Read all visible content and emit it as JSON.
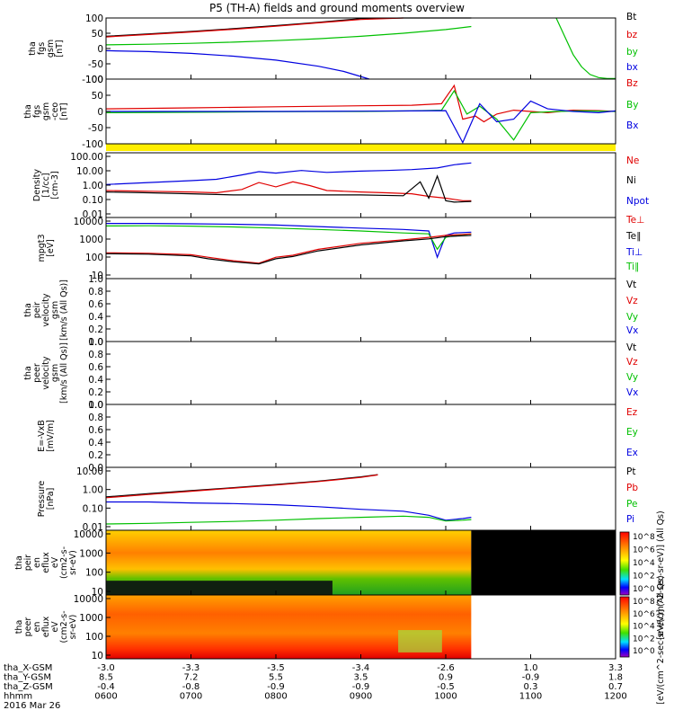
{
  "title": "P5 (TH-A) fields and ground moments overview",
  "footer": {
    "row_labels": [
      "tha_X-GSM",
      "tha_Y-GSM",
      "tha_Z-GSM",
      "hhmm",
      "2016 Mar 26"
    ],
    "columns": [
      [
        "-3.0",
        "8.5",
        "-0.4",
        "0600"
      ],
      [
        "-3.3",
        "7.2",
        "-0.8",
        "0700"
      ],
      [
        "-3.5",
        "5.5",
        "-0.9",
        "0800"
      ],
      [
        "-3.4",
        "3.5",
        "-0.9",
        "0900"
      ],
      [
        "-2.6",
        "0.9",
        "-0.5",
        "1000"
      ],
      [
        "1.0",
        "-0.9",
        "0.3",
        "1100"
      ],
      [
        "3.3",
        "1.8",
        "0.7",
        "1200"
      ]
    ]
  },
  "colorbar": {
    "top_label": "[eV/(cm^2-sec-sr-eV)] (All Qs)",
    "bottom_label": "[eV/(cm^2-sec-sr-eV)] (All Qs)",
    "ticks": [
      "10^8",
      "10^6",
      "10^4",
      "10^2",
      "10^0"
    ]
  },
  "colors": {
    "black": "#000000",
    "red": "#e00000",
    "green": "#00c000",
    "blue": "#0000e0",
    "yellow": "#ffee00"
  },
  "chart_data": [
    {
      "id": "fgs-gsm-top",
      "type": "line",
      "ylabel": [
        "tha",
        "fgs",
        "gsm",
        "[nT]"
      ],
      "yticks": [
        "100",
        "50",
        "0",
        "-50",
        "-100"
      ],
      "ylim": [
        -100,
        100
      ],
      "legend": [
        {
          "text": "Bt",
          "color": "black"
        },
        {
          "text": "bz",
          "color": "red"
        },
        {
          "text": "by",
          "color": "green"
        },
        {
          "text": "bx",
          "color": "blue"
        }
      ],
      "series": [
        {
          "name": "Bt",
          "color": "black",
          "x": [
            6.0,
            6.5,
            7.0,
            7.5,
            8.0,
            8.5,
            9.0,
            9.5,
            10.0,
            10.3
          ],
          "y": [
            40,
            48,
            56,
            65,
            75,
            86,
            98,
            110,
            125,
            140
          ]
        },
        {
          "name": "bz",
          "color": "red",
          "x": [
            6.0,
            6.5,
            7.0,
            7.5,
            8.0,
            8.5,
            9.0,
            9.5
          ],
          "y": [
            38,
            46,
            54,
            63,
            73,
            84,
            95,
            108
          ]
        },
        {
          "name": "by",
          "color": "green",
          "x": [
            6.0,
            6.5,
            7.0,
            7.5,
            8.0,
            8.5,
            9.0,
            9.5,
            10.0,
            10.3
          ],
          "y": [
            12,
            14,
            17,
            21,
            26,
            32,
            40,
            50,
            62,
            72
          ]
        },
        {
          "name": "bx",
          "color": "blue",
          "x": [
            6.0,
            6.5,
            7.0,
            7.5,
            8.0,
            8.5,
            8.8,
            9.1
          ],
          "y": [
            -7,
            -10,
            -16,
            -25,
            -38,
            -58,
            -75,
            -100
          ]
        },
        {
          "name": "by-late",
          "color": "green",
          "x": [
            11.3,
            11.4,
            11.5,
            11.6,
            11.7,
            11.8,
            11.9,
            12.0
          ],
          "y": [
            100,
            40,
            -20,
            -60,
            -85,
            -95,
            -98,
            -98
          ]
        }
      ]
    },
    {
      "id": "fgs-gse-ceo",
      "type": "line",
      "ylabel": [
        "tha",
        "fgs",
        "gsm",
        "-ceo",
        "[nT]"
      ],
      "yticks": [
        "100",
        "50",
        "0",
        "-50",
        "-100"
      ],
      "ylim": [
        -125,
        125
      ],
      "legend": [
        {
          "text": "Bz",
          "color": "red"
        },
        {
          "text": "By",
          "color": "green"
        },
        {
          "text": "Bx",
          "color": "blue"
        }
      ],
      "series": [
        {
          "name": "Bz",
          "color": "red",
          "x": [
            6.0,
            7.0,
            8.0,
            9.0,
            9.6,
            9.95,
            10.1,
            10.2,
            10.35,
            10.45,
            10.6,
            10.8,
            11.0,
            11.2,
            11.5,
            11.8,
            12.0
          ],
          "y": [
            10,
            14,
            18,
            22,
            24,
            30,
            100,
            -30,
            -18,
            -40,
            -10,
            5,
            0,
            -5,
            5,
            3,
            0
          ]
        },
        {
          "name": "By",
          "color": "green",
          "x": [
            6.0,
            7.0,
            8.0,
            9.0,
            9.6,
            9.95,
            10.1,
            10.25,
            10.4,
            10.6,
            10.8,
            11.0,
            11.3,
            11.6,
            12.0
          ],
          "y": [
            -5,
            -3,
            -1,
            0,
            2,
            5,
            80,
            -10,
            20,
            -30,
            -110,
            -5,
            0,
            2,
            0
          ]
        },
        {
          "name": "Bx",
          "color": "blue",
          "x": [
            6.0,
            7.0,
            8.0,
            9.0,
            9.6,
            10.0,
            10.2,
            10.4,
            10.6,
            10.8,
            11.0,
            11.2,
            11.5,
            11.8,
            12.0
          ],
          "y": [
            0,
            0,
            0,
            1,
            2,
            3,
            -120,
            30,
            -40,
            -30,
            40,
            10,
            0,
            -5,
            2
          ]
        }
      ]
    },
    {
      "id": "density",
      "type": "line",
      "yscale": "log",
      "ylabel": [
        "Density",
        "[1/cc]",
        "[cm-3]"
      ],
      "yticks": [
        "100.00",
        "10.00",
        "1.00",
        "0.10",
        "0.01"
      ],
      "ylim": [
        0.007,
        200
      ],
      "legend": [
        {
          "text": "Ne",
          "color": "red"
        },
        {
          "text": "Ni",
          "color": "black"
        },
        {
          "text": "Npot",
          "color": "blue"
        }
      ],
      "series": [
        {
          "name": "Npot",
          "color": "blue",
          "x": [
            6.0,
            6.5,
            7.0,
            7.3,
            7.6,
            7.8,
            8.0,
            8.3,
            8.6,
            9.0,
            9.3,
            9.6,
            9.9,
            10.1,
            10.3
          ],
          "y": [
            1.3,
            1.8,
            2.4,
            3.0,
            6.0,
            10,
            8,
            12,
            9,
            11,
            12,
            14,
            18,
            30,
            40
          ]
        },
        {
          "name": "Ne",
          "color": "red",
          "x": [
            6.0,
            6.5,
            7.0,
            7.3,
            7.6,
            7.8,
            8.0,
            8.2,
            8.4,
            8.6,
            8.8,
            9.0,
            9.3,
            9.6,
            9.8,
            10.0,
            10.2,
            10.3
          ],
          "y": [
            0.5,
            0.45,
            0.4,
            0.35,
            0.6,
            1.8,
            0.9,
            2.0,
            1.1,
            0.5,
            0.45,
            0.4,
            0.35,
            0.3,
            0.2,
            0.15,
            0.1,
            0.1
          ]
        },
        {
          "name": "Ni",
          "color": "black",
          "x": [
            6.0,
            6.5,
            7.0,
            7.5,
            8.0,
            8.5,
            9.0,
            9.5,
            9.7,
            9.8,
            9.9,
            10.0,
            10.1,
            10.3
          ],
          "y": [
            0.4,
            0.35,
            0.3,
            0.25,
            0.25,
            0.25,
            0.25,
            0.22,
            2.0,
            0.15,
            5.0,
            0.1,
            0.08,
            0.09
          ]
        }
      ]
    },
    {
      "id": "moment-temp",
      "type": "line",
      "yscale": "log",
      "ylabel": [
        "mpgt3",
        "[eV]"
      ],
      "yticks": [
        "10000",
        "1000",
        "100",
        "10"
      ],
      "ylim": [
        10,
        12000
      ],
      "legend": [
        {
          "text": "Te⊥",
          "color": "red"
        },
        {
          "text": "Te∥",
          "color": "black"
        },
        {
          "text": "Ti⊥",
          "color": "blue"
        },
        {
          "text": "Ti∥",
          "color": "green"
        }
      ],
      "series": [
        {
          "name": "Ti⊥",
          "color": "blue",
          "x": [
            6.0,
            6.5,
            7.0,
            7.5,
            8.0,
            8.5,
            9.0,
            9.5,
            9.8,
            9.9,
            10.0,
            10.1,
            10.3
          ],
          "y": [
            6000,
            6000,
            5800,
            5500,
            5000,
            4200,
            3500,
            3000,
            2500,
            120,
            1500,
            2000,
            2200
          ]
        },
        {
          "name": "Ti∥",
          "color": "green",
          "x": [
            6.0,
            6.5,
            7.0,
            7.5,
            8.0,
            8.5,
            9.0,
            9.5,
            9.8,
            9.9,
            10.0,
            10.1,
            10.3
          ],
          "y": [
            4500,
            4600,
            4400,
            4000,
            3500,
            3000,
            2500,
            2000,
            1800,
            300,
            1200,
            1500,
            1800
          ]
        },
        {
          "name": "Te⊥",
          "color": "red",
          "x": [
            6.0,
            6.5,
            7.0,
            7.2,
            7.5,
            7.8,
            8.0,
            8.2,
            8.5,
            9.0,
            9.5,
            9.8,
            10.0,
            10.3
          ],
          "y": [
            200,
            190,
            160,
            120,
            80,
            60,
            120,
            150,
            300,
            600,
            900,
            1200,
            1500,
            1800
          ]
        },
        {
          "name": "Te∥",
          "color": "black",
          "x": [
            6.0,
            6.5,
            7.0,
            7.2,
            7.5,
            7.8,
            8.0,
            8.2,
            8.5,
            9.0,
            9.5,
            9.8,
            10.0,
            10.3
          ],
          "y": [
            180,
            170,
            140,
            100,
            70,
            55,
            100,
            130,
            250,
            500,
            800,
            1000,
            1300,
            1500
          ]
        }
      ]
    },
    {
      "id": "peir-velocity",
      "type": "line",
      "ylabel": [
        "tha",
        "peir",
        "velocity",
        "gsm",
        "[km/s (All Qs)]"
      ],
      "yticks": [
        "1.0",
        "0.8",
        "0.6",
        "0.4",
        "0.2",
        "0.0"
      ],
      "ylim": [
        0,
        1
      ],
      "legend": [
        {
          "text": "Vt",
          "color": "black"
        },
        {
          "text": "Vz",
          "color": "red"
        },
        {
          "text": "Vy",
          "color": "green"
        },
        {
          "text": "Vx",
          "color": "blue"
        }
      ],
      "series": []
    },
    {
      "id": "peer-velocity",
      "type": "line",
      "ylabel": [
        "tha",
        "peer",
        "velocity",
        "gsm",
        "[km/s (All Qs)]"
      ],
      "yticks": [
        "1.0",
        "0.8",
        "0.6",
        "0.4",
        "0.2",
        "0.0"
      ],
      "ylim": [
        0,
        1
      ],
      "legend": [
        {
          "text": "Vt",
          "color": "black"
        },
        {
          "text": "Vz",
          "color": "red"
        },
        {
          "text": "Vy",
          "color": "green"
        },
        {
          "text": "Vx",
          "color": "blue"
        }
      ],
      "series": []
    },
    {
      "id": "e-field",
      "type": "line",
      "ylabel": [
        "E=-VxB",
        "[mV/m]"
      ],
      "yticks": [
        "1.0",
        "0.8",
        "0.6",
        "0.4",
        "0.2",
        "0.0"
      ],
      "ylim": [
        0,
        1
      ],
      "legend": [
        {
          "text": "Ez",
          "color": "red"
        },
        {
          "text": "Ey",
          "color": "green"
        },
        {
          "text": "Ex",
          "color": "blue"
        }
      ],
      "series": []
    },
    {
      "id": "pressure",
      "type": "line",
      "yscale": "log",
      "ylabel": [
        "Pressure",
        "[nPa]"
      ],
      "yticks": [
        "10.00",
        "1.00",
        "0.10",
        "0.01"
      ],
      "ylim": [
        0.005,
        30
      ],
      "legend": [
        {
          "text": "Pt",
          "color": "black"
        },
        {
          "text": "Pb",
          "color": "red"
        },
        {
          "text": "Pe",
          "color": "green"
        },
        {
          "text": "Pi",
          "color": "blue"
        }
      ],
      "series": [
        {
          "name": "Pt",
          "color": "black",
          "x": [
            6.0,
            6.5,
            7.0,
            7.5,
            8.0,
            8.5,
            9.0,
            9.2
          ],
          "y": [
            0.5,
            0.8,
            1.2,
            1.8,
            2.8,
            4.5,
            8.0,
            11.0
          ]
        },
        {
          "name": "Pb",
          "color": "red",
          "x": [
            6.0,
            6.5,
            7.0,
            7.5,
            8.0,
            8.5,
            9.0,
            9.2
          ],
          "y": [
            0.45,
            0.7,
            1.1,
            1.7,
            2.6,
            4.2,
            7.5,
            10.5
          ]
        },
        {
          "name": "Pi",
          "color": "blue",
          "x": [
            6.0,
            6.5,
            7.0,
            7.5,
            8.0,
            8.5,
            9.0,
            9.5,
            9.8,
            10.0,
            10.2,
            10.3
          ],
          "y": [
            0.25,
            0.25,
            0.22,
            0.2,
            0.17,
            0.13,
            0.09,
            0.07,
            0.04,
            0.02,
            0.025,
            0.03
          ]
        },
        {
          "name": "Pe",
          "color": "green",
          "x": [
            6.0,
            6.5,
            7.0,
            7.5,
            8.0,
            8.5,
            9.0,
            9.5,
            9.8,
            10.0,
            10.2,
            10.3
          ],
          "y": [
            0.012,
            0.013,
            0.015,
            0.017,
            0.02,
            0.025,
            0.03,
            0.035,
            0.03,
            0.018,
            0.02,
            0.022
          ]
        }
      ]
    },
    {
      "id": "peir-eflux",
      "type": "heatmap",
      "ylabel": [
        "tha",
        "peir",
        "en",
        "eflux",
        "eV",
        "(cm2-s-",
        "sr-eV)"
      ],
      "yticks": [
        "10000",
        "1000",
        "100",
        "10"
      ],
      "ylim": [
        5,
        25000
      ],
      "xlim_data": [
        6.0,
        10.3
      ]
    },
    {
      "id": "peer-eflux",
      "type": "heatmap",
      "ylabel": [
        "tha",
        "peer",
        "en",
        "eflux",
        "eV",
        "(cm2-s-",
        "sr-eV)"
      ],
      "yticks": [
        "10000",
        "1000",
        "100",
        "10"
      ],
      "ylim": [
        5,
        25000
      ],
      "xlim_data": [
        6.0,
        10.3
      ]
    }
  ],
  "x_range_hours": [
    6,
    12
  ]
}
